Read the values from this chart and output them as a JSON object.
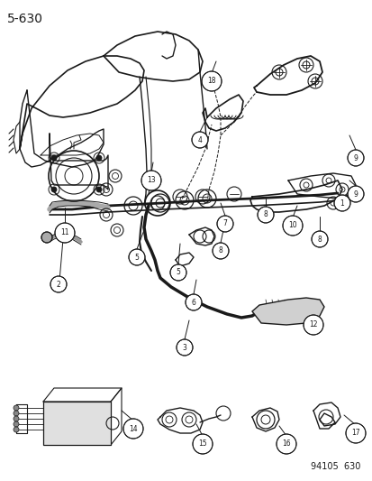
{
  "title": "5-630",
  "footer": "94105  630",
  "bg_color": "#ffffff",
  "fg_color": "#1a1a1a",
  "title_fontsize": 10,
  "footer_fontsize": 7,
  "fig_width": 4.14,
  "fig_height": 5.33,
  "dpi": 100
}
